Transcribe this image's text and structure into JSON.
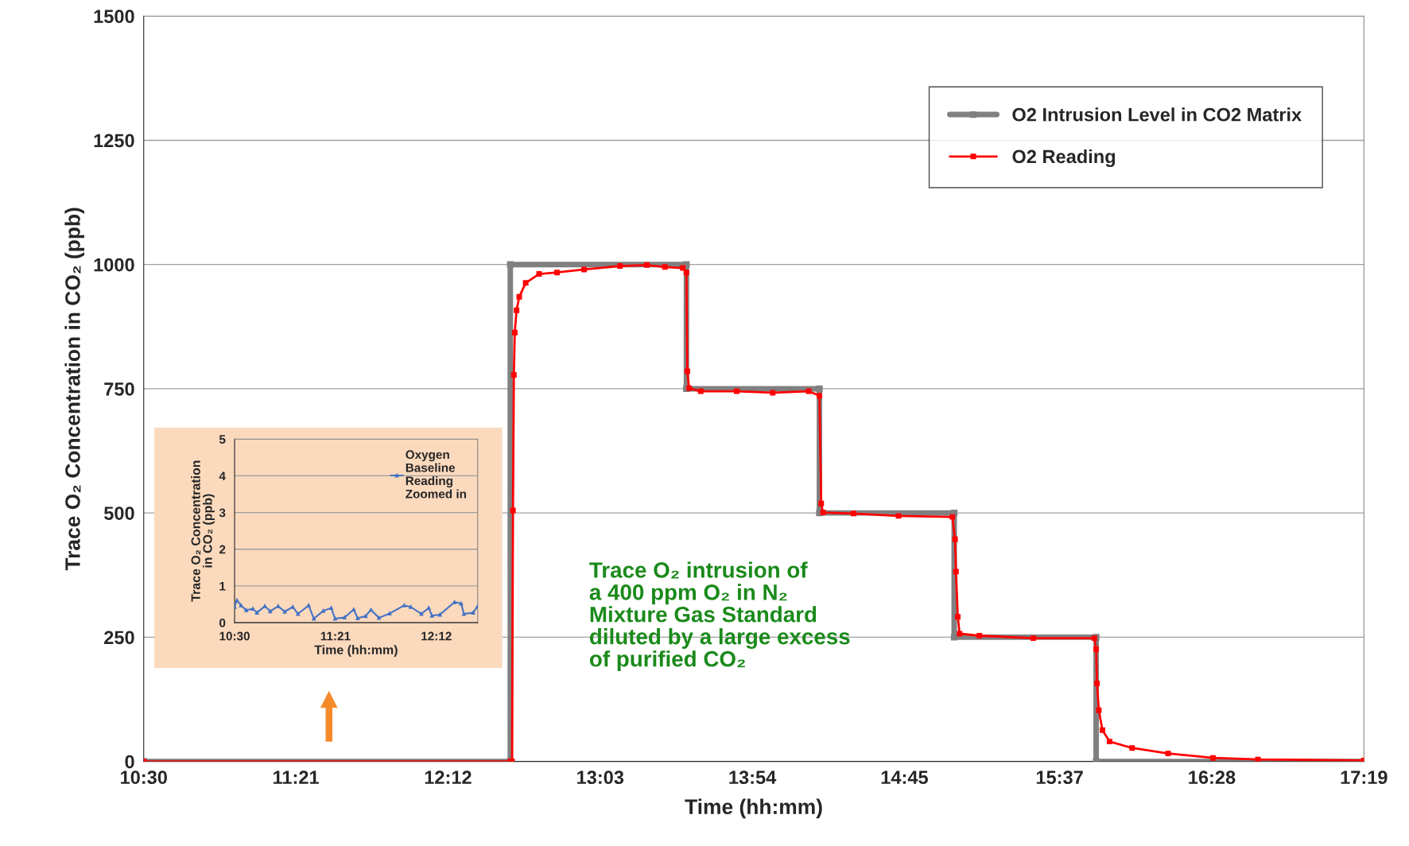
{
  "chart_data": [
    {
      "type": "line",
      "xlabel": "Time (hh:mm)",
      "ylabel": "Trace O₂ Concentration in CO₂ (ppb)",
      "xlim": [
        10.5,
        17.317
      ],
      "xticks": [
        {
          "value": 10.5,
          "label": "10:30"
        },
        {
          "value": 11.35,
          "label": "11:21"
        },
        {
          "value": 12.2,
          "label": "12:12"
        },
        {
          "value": 13.05,
          "label": "13:03"
        },
        {
          "value": 13.9,
          "label": "13:54"
        },
        {
          "value": 14.75,
          "label": "14:45"
        },
        {
          "value": 15.617,
          "label": "15:37"
        },
        {
          "value": 16.467,
          "label": "16:28"
        },
        {
          "value": 17.317,
          "label": "17:19"
        }
      ],
      "ylim": [
        0,
        1500
      ],
      "yticks": [
        0,
        250,
        500,
        750,
        1000,
        1250,
        1500
      ],
      "grid": "y",
      "legend": "top right",
      "marker": "square",
      "series": [
        {
          "name": "O2 Intrusion Level in CO2 Matrix",
          "color": "#808080",
          "x": [
            10.5,
            12.548,
            12.548,
            13.532,
            13.532,
            14.275,
            14.275,
            15.028,
            15.028,
            15.821,
            15.821,
            17.317
          ],
          "values": [
            0,
            0,
            1000,
            1000,
            750,
            750,
            500,
            500,
            250,
            250,
            0,
            0
          ]
        },
        {
          "name": "O2 Reading",
          "color": "#ff0000",
          "x": [
            10.5,
            12.548,
            12.558,
            12.563,
            12.568,
            12.573,
            12.583,
            12.598,
            12.634,
            12.709,
            12.809,
            12.96,
            13.161,
            13.311,
            13.412,
            13.512,
            13.532,
            13.537,
            13.547,
            13.612,
            13.813,
            14.014,
            14.215,
            14.275,
            14.285,
            14.295,
            14.466,
            14.717,
            15.018,
            15.033,
            15.038,
            15.048,
            15.058,
            15.169,
            15.47,
            15.811,
            15.821,
            15.826,
            15.836,
            15.856,
            15.896,
            16.022,
            16.223,
            16.474,
            16.725,
            17.317
          ],
          "values": [
            0,
            0,
            0,
            505,
            778,
            863,
            908,
            935,
            963,
            981,
            984,
            990,
            997,
            999,
            995,
            993,
            984,
            785,
            751,
            745,
            745,
            742,
            745,
            736,
            519,
            501,
            499,
            494,
            492,
            447,
            382,
            291,
            257,
            253,
            248,
            248,
            226,
            157,
            103,
            63,
            40,
            27,
            16,
            7,
            4,
            2
          ]
        }
      ],
      "annotations": [
        "Trace O₂ intrusion of\na 400 ppm O₂ in N₂\nMixture Gas Standard\ndiluted by a large excess\nof purified CO₂"
      ]
    },
    {
      "type": "line",
      "xlabel": "Time (hh:mm)",
      "ylabel": "Trace O₂ Concentration\nin CO₂ (ppb)",
      "xlim": [
        10.5,
        12.548
      ],
      "xticks": [
        {
          "value": 10.5,
          "label": "10:30"
        },
        {
          "value": 11.35,
          "label": "11:21"
        },
        {
          "value": 12.2,
          "label": "12:12"
        }
      ],
      "ylim": [
        0,
        5
      ],
      "yticks": [
        0,
        1,
        2,
        3,
        4,
        5
      ],
      "grid": "y",
      "legend": "top right",
      "marker": "triangle",
      "series": [
        {
          "name": "Oxygen\nBaseline\nReading\nZoomed in",
          "color": "#4472c4",
          "x": [
            10.5,
            10.52,
            10.554,
            10.598,
            10.654,
            10.688,
            10.755,
            10.8,
            10.867,
            10.923,
            10.99,
            11.034,
            11.124,
            11.168,
            11.247,
            11.314,
            11.347,
            11.426,
            11.504,
            11.537,
            11.604,
            11.649,
            11.716,
            11.806,
            11.929,
            11.984,
            12.074,
            12.136,
            12.163,
            12.23,
            12.353,
            12.409,
            12.432,
            12.51,
            12.548
          ],
          "values": [
            0.43,
            0.61,
            0.47,
            0.34,
            0.38,
            0.27,
            0.45,
            0.31,
            0.45,
            0.3,
            0.43,
            0.24,
            0.47,
            0.11,
            0.32,
            0.4,
            0.11,
            0.14,
            0.36,
            0.12,
            0.18,
            0.35,
            0.13,
            0.25,
            0.47,
            0.43,
            0.24,
            0.4,
            0.19,
            0.22,
            0.56,
            0.52,
            0.24,
            0.27,
            0.45
          ]
        }
      ]
    }
  ]
}
